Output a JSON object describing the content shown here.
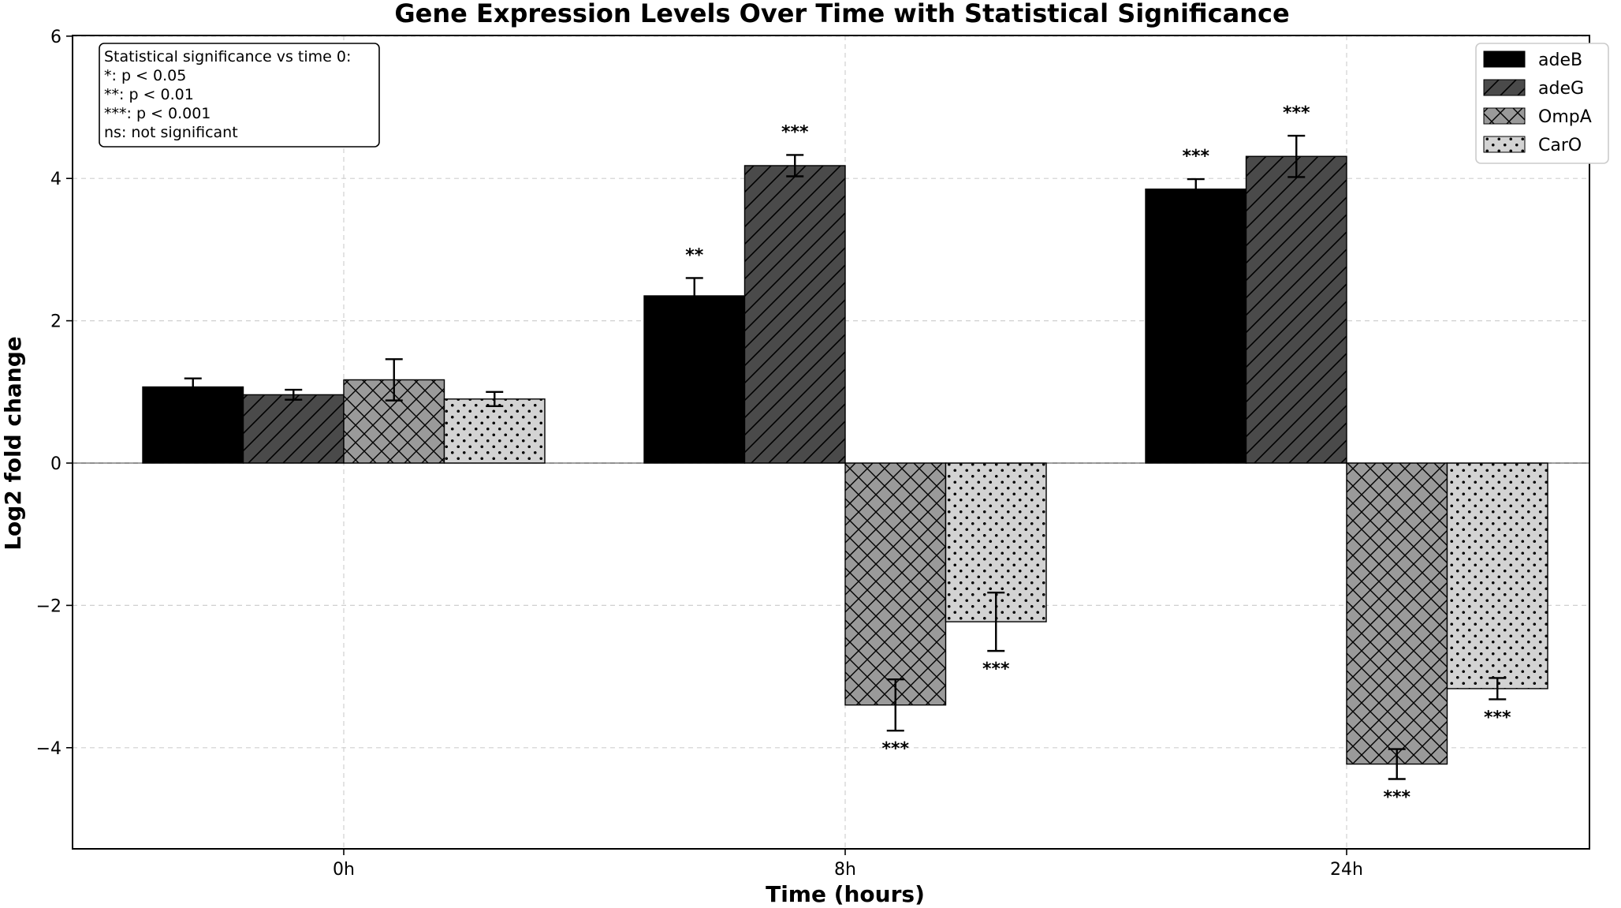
{
  "chart_data": {
    "type": "bar",
    "title": "Gene Expression Levels Over Time with Statistical Significance",
    "xlabel": "Time (hours)",
    "ylabel": "Log2 fold change",
    "categories": [
      "0h",
      "8h",
      "24h"
    ],
    "ylim": [
      -5.4,
      6.1
    ],
    "yticks": [
      -4,
      -2,
      0,
      2,
      4,
      6
    ],
    "ytick_labels": [
      "−4",
      "−2",
      "0",
      "2",
      "4",
      "6"
    ],
    "grid": true,
    "legend_position": "top-right",
    "series": [
      {
        "name": "adeB",
        "values": [
          1.07,
          2.35,
          3.85
        ],
        "errors": [
          0.12,
          0.25,
          0.14
        ],
        "significance": [
          "",
          "**",
          "***"
        ],
        "color": "#000000",
        "pattern": "solid"
      },
      {
        "name": "adeG",
        "values": [
          0.96,
          4.18,
          4.31
        ],
        "errors": [
          0.07,
          0.15,
          0.29
        ],
        "significance": [
          "",
          "***",
          "***"
        ],
        "color": "#4a4a4a",
        "pattern": "diagonal"
      },
      {
        "name": "OmpA",
        "values": [
          1.17,
          -3.4,
          -4.23
        ],
        "errors": [
          0.29,
          0.36,
          0.21
        ],
        "significance": [
          "",
          "***",
          "***"
        ],
        "color": "#9a9a9a",
        "pattern": "crosshatch"
      },
      {
        "name": "CarO",
        "values": [
          0.9,
          -2.23,
          -3.17
        ],
        "errors": [
          0.1,
          0.41,
          0.15
        ],
        "significance": [
          "",
          "***",
          "***"
        ],
        "color": "#d3d3d3",
        "pattern": "dots"
      }
    ],
    "annotation": {
      "lines": [
        "Statistical significance vs time 0:",
        "*: p < 0.05",
        "**: p < 0.01",
        "***: p < 0.001",
        "ns: not significant"
      ]
    }
  }
}
